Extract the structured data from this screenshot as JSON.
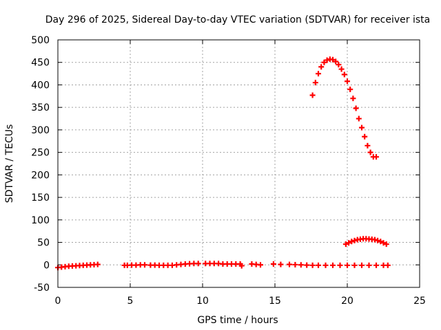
{
  "chart_data": {
    "type": "scatter",
    "title": "Day 296 of 2025, Sidereal Day-to-day VTEC variation (SDTVAR) for receiver ista",
    "xlabel": "GPS time / hours",
    "ylabel": "SDTVAR / TECUs",
    "xlim": [
      0,
      25
    ],
    "ylim": [
      -50,
      500
    ],
    "xticks": [
      "0",
      "5",
      "10",
      "15",
      "20",
      "25"
    ],
    "yticks": [
      "-50",
      "0",
      "50",
      "100",
      "150",
      "200",
      "250",
      "300",
      "350",
      "400",
      "450",
      "500"
    ],
    "grid": true,
    "color": "#ff0000",
    "marker": "plus",
    "series": [
      {
        "values": [
          [
            0.0,
            -6
          ],
          [
            0.25,
            -5
          ],
          [
            0.5,
            -4
          ],
          [
            0.75,
            -3
          ],
          [
            1.0,
            -2.5
          ],
          [
            1.25,
            -2
          ],
          [
            1.5,
            -1.5
          ],
          [
            1.75,
            -1
          ],
          [
            2.0,
            -0.5
          ],
          [
            2.25,
            0
          ],
          [
            2.5,
            0.5
          ],
          [
            2.75,
            1
          ],
          [
            4.6,
            -1
          ],
          [
            4.8,
            -1
          ],
          [
            5.1,
            -0.5
          ],
          [
            5.4,
            -0.5
          ],
          [
            5.7,
            0
          ],
          [
            6.0,
            0
          ],
          [
            6.4,
            -0.5
          ],
          [
            6.7,
            -0.5
          ],
          [
            7.0,
            -1
          ],
          [
            7.3,
            -1
          ],
          [
            7.6,
            -1
          ],
          [
            7.9,
            -1
          ],
          [
            8.2,
            0
          ],
          [
            8.5,
            1
          ],
          [
            8.8,
            2
          ],
          [
            9.1,
            2.5
          ],
          [
            9.4,
            3
          ],
          [
            9.7,
            3
          ],
          [
            10.2,
            3
          ],
          [
            10.5,
            3
          ],
          [
            10.8,
            3
          ],
          [
            11.1,
            3
          ],
          [
            11.4,
            2
          ],
          [
            11.7,
            2
          ],
          [
            12.0,
            2
          ],
          [
            12.3,
            2
          ],
          [
            12.6,
            2
          ],
          [
            12.7,
            -2
          ],
          [
            13.4,
            2
          ],
          [
            13.7,
            1
          ],
          [
            14.0,
            0
          ],
          [
            14.9,
            2
          ],
          [
            15.4,
            1
          ],
          [
            16.0,
            1
          ],
          [
            16.4,
            0.5
          ],
          [
            16.8,
            0
          ],
          [
            17.2,
            -0.5
          ],
          [
            17.6,
            -1
          ],
          [
            18.0,
            -1
          ],
          [
            18.5,
            -1
          ],
          [
            19.0,
            -1
          ],
          [
            19.5,
            -1
          ],
          [
            20.0,
            -1
          ],
          [
            20.5,
            -1
          ],
          [
            21.0,
            -1
          ],
          [
            21.5,
            -1
          ],
          [
            22.0,
            -1
          ],
          [
            22.5,
            -1
          ],
          [
            22.8,
            -1
          ]
        ]
      },
      {
        "values": [
          [
            17.6,
            377
          ],
          [
            17.8,
            405
          ],
          [
            18.0,
            425
          ],
          [
            18.2,
            440
          ],
          [
            18.4,
            450
          ],
          [
            18.6,
            455
          ],
          [
            18.8,
            457
          ],
          [
            19.0,
            456
          ],
          [
            19.2,
            452
          ],
          [
            19.4,
            445
          ],
          [
            19.6,
            435
          ],
          [
            19.8,
            423
          ],
          [
            20.0,
            408
          ],
          [
            20.2,
            390
          ],
          [
            20.4,
            370
          ],
          [
            20.6,
            348
          ],
          [
            20.8,
            325
          ],
          [
            21.0,
            305
          ],
          [
            21.2,
            285
          ],
          [
            21.4,
            265
          ],
          [
            21.6,
            250
          ],
          [
            21.8,
            240
          ],
          [
            22.0,
            240
          ]
        ]
      },
      {
        "values": [
          [
            19.9,
            46
          ],
          [
            20.1,
            49
          ],
          [
            20.3,
            52
          ],
          [
            20.5,
            54
          ],
          [
            20.7,
            56
          ],
          [
            20.9,
            57
          ],
          [
            21.1,
            58
          ],
          [
            21.3,
            58
          ],
          [
            21.5,
            57.5
          ],
          [
            21.7,
            57
          ],
          [
            21.9,
            56
          ],
          [
            22.1,
            54
          ],
          [
            22.3,
            52
          ],
          [
            22.5,
            49
          ],
          [
            22.7,
            46
          ]
        ]
      }
    ]
  }
}
